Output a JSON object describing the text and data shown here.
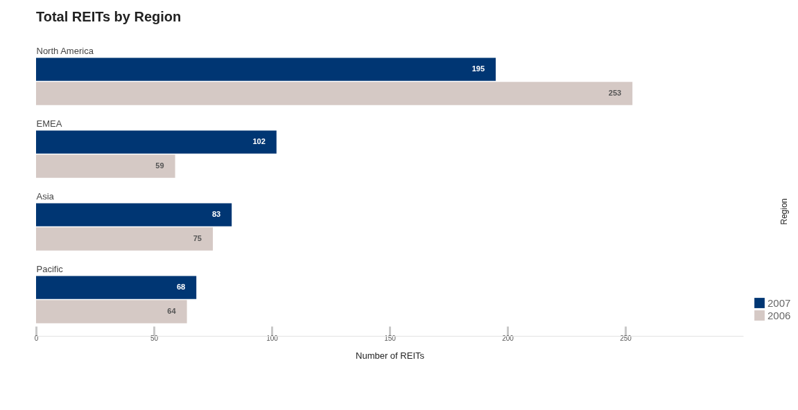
{
  "chart_data": {
    "type": "bar",
    "orientation": "horizontal",
    "title": "Total REITs by Region",
    "xlabel": "Number of REITs",
    "ylabel": "Region",
    "categories": [
      "North America",
      "EMEA",
      "Asia",
      "Pacific"
    ],
    "series": [
      {
        "name": "2007",
        "color": "#003673",
        "values": [
          195,
          102,
          83,
          68
        ]
      },
      {
        "name": "2006",
        "color": "#d5c9c5",
        "values": [
          253,
          59,
          75,
          64
        ]
      }
    ],
    "xlim": [
      0,
      300
    ],
    "xticks": [
      0,
      50,
      100,
      150,
      200,
      250
    ],
    "legend": "bottom right",
    "data_labels": true
  }
}
